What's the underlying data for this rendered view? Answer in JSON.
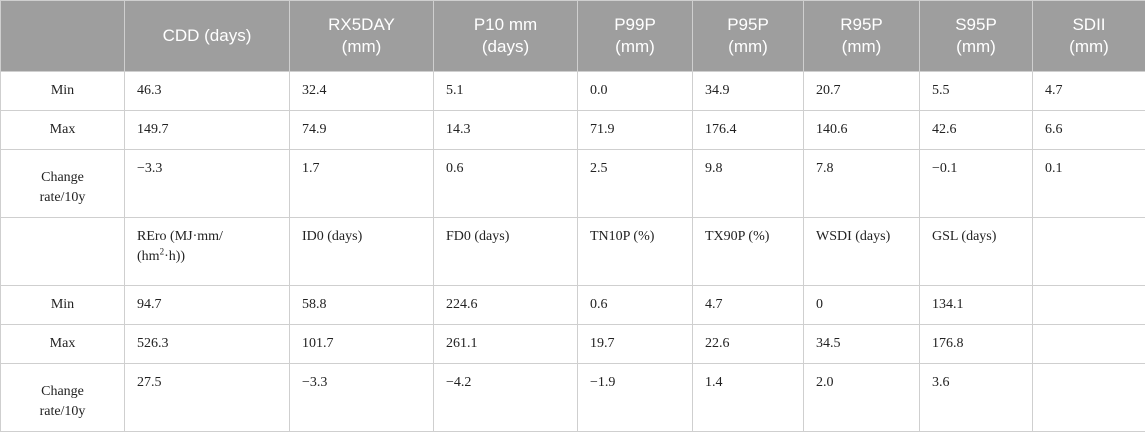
{
  "header": {
    "cols": [
      {
        "l1": "CDD (days)",
        "l2": ""
      },
      {
        "l1": "RX5DAY",
        "l2": "(mm)"
      },
      {
        "l1": "P10 mm",
        "l2": "(days)"
      },
      {
        "l1": "P99P",
        "l2": "(mm)"
      },
      {
        "l1": "P95P",
        "l2": "(mm)"
      },
      {
        "l1": "R95P",
        "l2": "(mm)"
      },
      {
        "l1": "S95P",
        "l2": "(mm)"
      },
      {
        "l1": "SDII",
        "l2": "(mm)"
      }
    ]
  },
  "rows": [
    {
      "label": "Min",
      "cells": [
        "46.3",
        "32.4",
        "5.1",
        "0.0",
        "34.9",
        "20.7",
        "5.5",
        "4.7"
      ]
    },
    {
      "label": "Max",
      "cells": [
        "149.7",
        "74.9",
        "14.3",
        "71.9",
        "176.4",
        "140.6",
        "42.6",
        "6.6"
      ]
    },
    {
      "label_l1": "Change",
      "label_l2": "rate/10y",
      "cells": [
        "−3.3",
        "1.7",
        "0.6",
        "2.5",
        "9.8",
        "7.8",
        "−0.1",
        "0.1"
      ]
    }
  ],
  "subheader": {
    "rero_l1": "REro (MJ·mm/",
    "rero_l2a": "(hm",
    "rero_sup": "2",
    "rero_l2b": "·h))",
    "cols": [
      "ID0 (days)",
      "FD0 (days)",
      "TN10P (%)",
      "TX90P (%)",
      "WSDI (days)",
      "GSL (days)",
      ""
    ]
  },
  "rows2": [
    {
      "label": "Min",
      "cells": [
        "94.7",
        "58.8",
        "224.6",
        "0.6",
        "4.7",
        "0",
        "134.1",
        ""
      ]
    },
    {
      "label": "Max",
      "cells": [
        "526.3",
        "101.7",
        "261.1",
        "19.7",
        "22.6",
        "34.5",
        "176.8",
        ""
      ]
    },
    {
      "label_l1": "Change",
      "label_l2": "rate/10y",
      "cells": [
        "27.5",
        "−3.3",
        "−4.2",
        "−1.9",
        "1.4",
        "2.0",
        "3.6",
        ""
      ]
    }
  ]
}
